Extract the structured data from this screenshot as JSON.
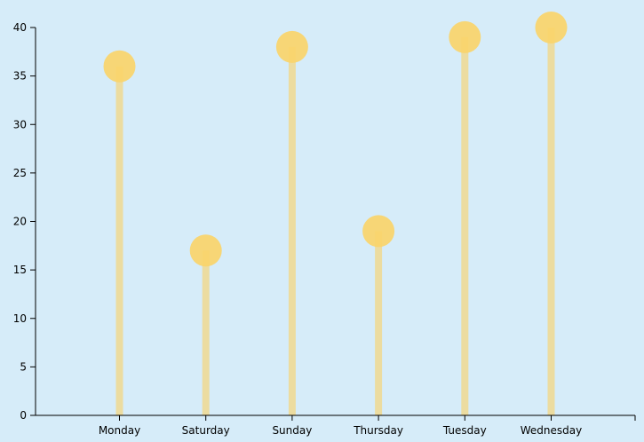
{
  "chart_data": {
    "type": "lollipop",
    "categories": [
      "Monday",
      "Saturday",
      "Sunday",
      "Thursday",
      "Tuesday",
      "Wednesday"
    ],
    "values": [
      36,
      17,
      38,
      19,
      39,
      40
    ],
    "ylim": [
      0,
      40
    ],
    "yticks": [
      0,
      5,
      10,
      15,
      20,
      25,
      30,
      35,
      40
    ],
    "grid": false,
    "colors": {
      "stem": "#ecdca0",
      "dot": "#fad46a",
      "background": "#d6ecf9"
    }
  }
}
